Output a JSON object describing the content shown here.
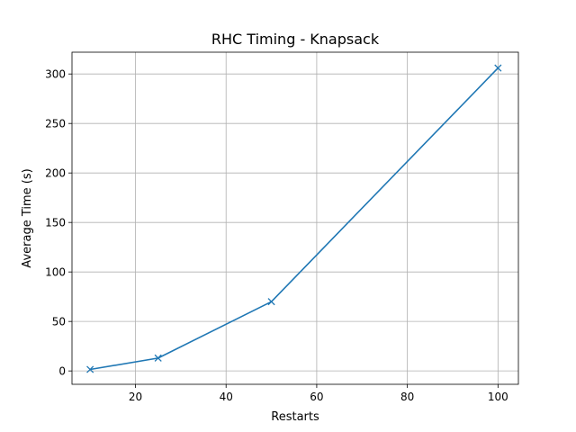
{
  "chart_data": {
    "type": "line",
    "title": "RHC Timing - Knapsack",
    "xlabel": "Restarts",
    "ylabel": "Average Time (s)",
    "xlim": [
      6,
      104.5
    ],
    "ylim": [
      -13.5,
      322
    ],
    "xticks": [
      20,
      40,
      60,
      80,
      100
    ],
    "yticks": [
      0,
      50,
      100,
      150,
      200,
      250,
      300
    ],
    "grid": true,
    "marker": "x",
    "color": "#1f77b4",
    "series": [
      {
        "x": [
          10,
          25,
          50,
          100
        ],
        "values": [
          1.5,
          13,
          70,
          306
        ]
      }
    ]
  }
}
